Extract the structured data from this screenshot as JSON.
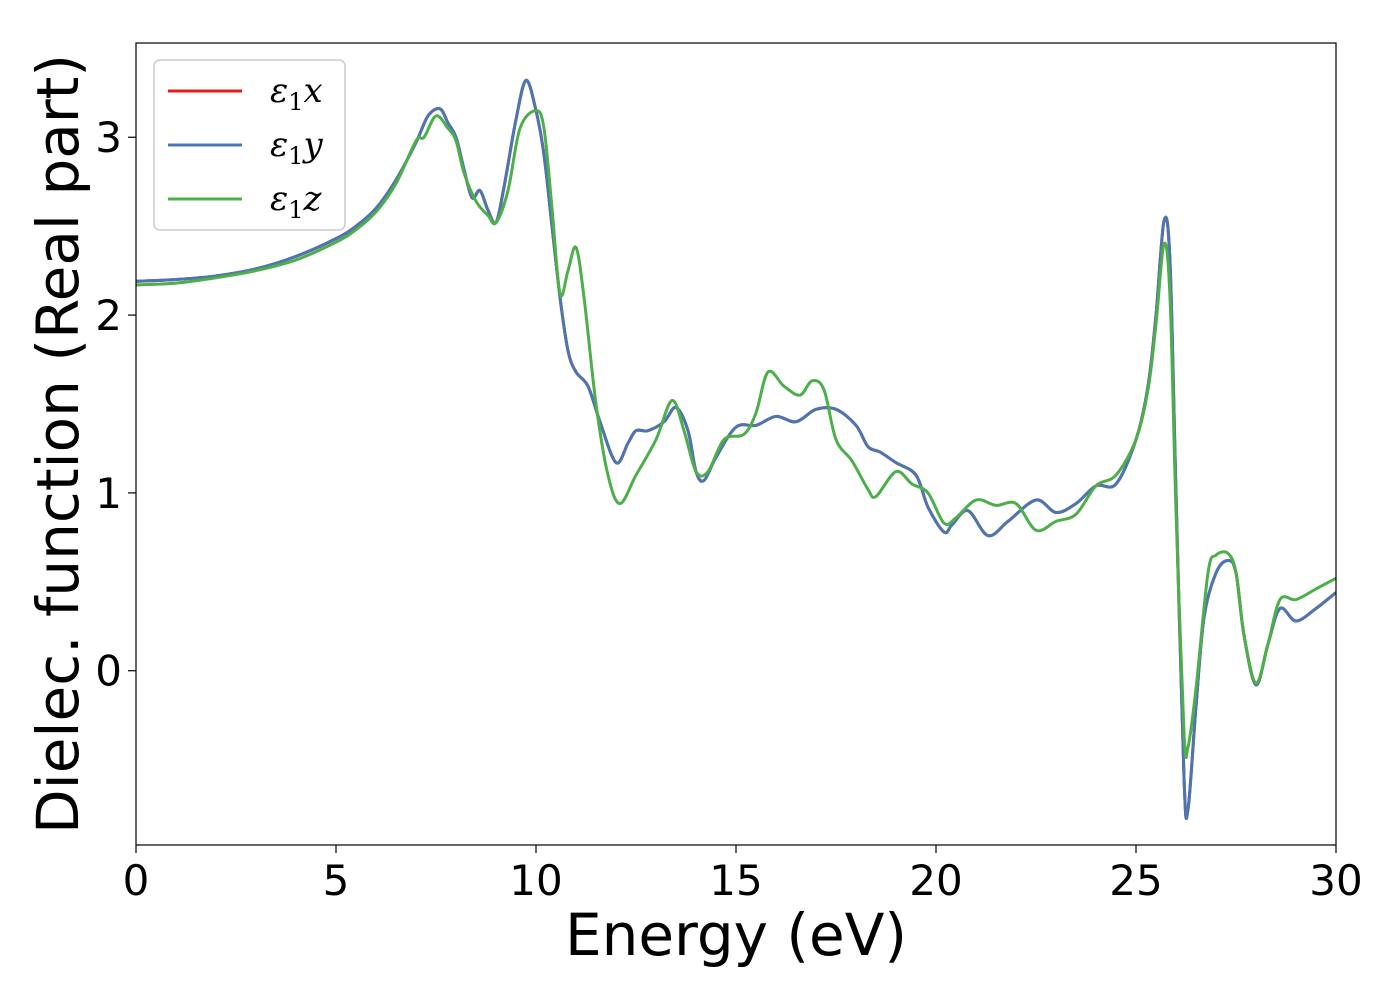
{
  "chart_data": {
    "type": "line",
    "title": "",
    "xlabel": "Energy (eV)",
    "ylabel": "Dielec. function (Real part)",
    "xlim": [
      0,
      30
    ],
    "ylim": [
      -0.98,
      3.53
    ],
    "xticks": [
      0,
      5,
      10,
      15,
      20,
      25,
      30
    ],
    "xtick_labels": [
      "0",
      "5",
      "10",
      "15",
      "20",
      "25",
      "30"
    ],
    "yticks": [
      0,
      1,
      2,
      3
    ],
    "ytick_labels": [
      "0",
      "1",
      "2",
      "3"
    ],
    "grid": false,
    "legend_position": "top-left",
    "series": [
      {
        "name": "ε1x",
        "legend_sub": "1",
        "color": "#e41a1c",
        "points": [
          [
            0,
            2.19
          ],
          [
            1,
            2.2
          ],
          [
            2,
            2.22
          ],
          [
            3,
            2.26
          ],
          [
            4,
            2.33
          ],
          [
            5,
            2.43
          ],
          [
            5.5,
            2.5
          ],
          [
            6,
            2.6
          ],
          [
            6.5,
            2.76
          ],
          [
            7,
            2.97
          ],
          [
            7.3,
            3.12
          ],
          [
            7.6,
            3.16
          ],
          [
            7.8,
            3.08
          ],
          [
            8,
            3.0
          ],
          [
            8.2,
            2.82
          ],
          [
            8.4,
            2.66
          ],
          [
            8.6,
            2.7
          ],
          [
            8.8,
            2.59
          ],
          [
            9,
            2.52
          ],
          [
            9.2,
            2.72
          ],
          [
            9.5,
            3.1
          ],
          [
            9.75,
            3.32
          ],
          [
            10,
            3.15
          ],
          [
            10.2,
            2.9
          ],
          [
            10.4,
            2.5
          ],
          [
            10.6,
            2.1
          ],
          [
            10.8,
            1.8
          ],
          [
            11,
            1.68
          ],
          [
            11.3,
            1.6
          ],
          [
            11.6,
            1.4
          ],
          [
            12,
            1.17
          ],
          [
            12.3,
            1.28
          ],
          [
            12.5,
            1.35
          ],
          [
            12.8,
            1.35
          ],
          [
            13.2,
            1.4
          ],
          [
            13.5,
            1.48
          ],
          [
            13.8,
            1.35
          ],
          [
            14,
            1.12
          ],
          [
            14.2,
            1.07
          ],
          [
            14.5,
            1.2
          ],
          [
            15,
            1.37
          ],
          [
            15.5,
            1.38
          ],
          [
            16,
            1.43
          ],
          [
            16.5,
            1.4
          ],
          [
            17,
            1.47
          ],
          [
            17.5,
            1.47
          ],
          [
            18,
            1.38
          ],
          [
            18.3,
            1.26
          ],
          [
            18.6,
            1.23
          ],
          [
            19,
            1.17
          ],
          [
            19.5,
            1.1
          ],
          [
            19.8,
            0.92
          ],
          [
            20.2,
            0.78
          ],
          [
            20.4,
            0.82
          ],
          [
            20.8,
            0.9
          ],
          [
            21.3,
            0.76
          ],
          [
            21.8,
            0.84
          ],
          [
            22.5,
            0.96
          ],
          [
            23,
            0.89
          ],
          [
            23.5,
            0.94
          ],
          [
            24,
            1.04
          ],
          [
            24.5,
            1.05
          ],
          [
            25,
            1.3
          ],
          [
            25.3,
            1.6
          ],
          [
            25.5,
            2.0
          ],
          [
            25.7,
            2.53
          ],
          [
            25.85,
            2.3
          ],
          [
            26,
            1.0
          ],
          [
            26.2,
            -0.6
          ],
          [
            26.3,
            -0.78
          ],
          [
            26.5,
            -0.2
          ],
          [
            26.7,
            0.3
          ],
          [
            27,
            0.55
          ],
          [
            27.3,
            0.62
          ],
          [
            27.5,
            0.55
          ],
          [
            27.7,
            0.2
          ],
          [
            28,
            -0.08
          ],
          [
            28.3,
            0.15
          ],
          [
            28.6,
            0.35
          ],
          [
            29,
            0.28
          ],
          [
            29.5,
            0.35
          ],
          [
            30,
            0.44
          ]
        ]
      },
      {
        "name": "ε1y",
        "legend_sub": "1",
        "color": "#4a77b4",
        "points": [
          [
            0,
            2.19
          ],
          [
            1,
            2.2
          ],
          [
            2,
            2.22
          ],
          [
            3,
            2.26
          ],
          [
            4,
            2.33
          ],
          [
            5,
            2.43
          ],
          [
            5.5,
            2.5
          ],
          [
            6,
            2.6
          ],
          [
            6.5,
            2.76
          ],
          [
            7,
            2.97
          ],
          [
            7.3,
            3.12
          ],
          [
            7.6,
            3.16
          ],
          [
            7.8,
            3.08
          ],
          [
            8,
            3.0
          ],
          [
            8.2,
            2.82
          ],
          [
            8.4,
            2.66
          ],
          [
            8.6,
            2.7
          ],
          [
            8.8,
            2.59
          ],
          [
            9,
            2.52
          ],
          [
            9.2,
            2.72
          ],
          [
            9.5,
            3.1
          ],
          [
            9.75,
            3.32
          ],
          [
            10,
            3.15
          ],
          [
            10.2,
            2.9
          ],
          [
            10.4,
            2.5
          ],
          [
            10.6,
            2.1
          ],
          [
            10.8,
            1.8
          ],
          [
            11,
            1.68
          ],
          [
            11.3,
            1.6
          ],
          [
            11.6,
            1.4
          ],
          [
            12,
            1.17
          ],
          [
            12.3,
            1.28
          ],
          [
            12.5,
            1.35
          ],
          [
            12.8,
            1.35
          ],
          [
            13.2,
            1.4
          ],
          [
            13.5,
            1.48
          ],
          [
            13.8,
            1.35
          ],
          [
            14,
            1.12
          ],
          [
            14.2,
            1.07
          ],
          [
            14.5,
            1.2
          ],
          [
            15,
            1.37
          ],
          [
            15.5,
            1.38
          ],
          [
            16,
            1.43
          ],
          [
            16.5,
            1.4
          ],
          [
            17,
            1.47
          ],
          [
            17.5,
            1.47
          ],
          [
            18,
            1.38
          ],
          [
            18.3,
            1.26
          ],
          [
            18.6,
            1.23
          ],
          [
            19,
            1.17
          ],
          [
            19.5,
            1.1
          ],
          [
            19.8,
            0.92
          ],
          [
            20.2,
            0.78
          ],
          [
            20.4,
            0.82
          ],
          [
            20.8,
            0.9
          ],
          [
            21.3,
            0.76
          ],
          [
            21.8,
            0.84
          ],
          [
            22.5,
            0.96
          ],
          [
            23,
            0.89
          ],
          [
            23.5,
            0.94
          ],
          [
            24,
            1.04
          ],
          [
            24.5,
            1.05
          ],
          [
            25,
            1.3
          ],
          [
            25.3,
            1.6
          ],
          [
            25.5,
            2.0
          ],
          [
            25.7,
            2.53
          ],
          [
            25.85,
            2.3
          ],
          [
            26,
            1.0
          ],
          [
            26.2,
            -0.6
          ],
          [
            26.3,
            -0.78
          ],
          [
            26.5,
            -0.2
          ],
          [
            26.7,
            0.3
          ],
          [
            27,
            0.55
          ],
          [
            27.3,
            0.62
          ],
          [
            27.5,
            0.55
          ],
          [
            27.7,
            0.2
          ],
          [
            28,
            -0.08
          ],
          [
            28.3,
            0.15
          ],
          [
            28.6,
            0.35
          ],
          [
            29,
            0.28
          ],
          [
            29.5,
            0.35
          ],
          [
            30,
            0.44
          ]
        ]
      },
      {
        "name": "ε1z",
        "legend_sub": "1",
        "color": "#4daf4a",
        "points": [
          [
            0,
            2.17
          ],
          [
            1,
            2.18
          ],
          [
            2,
            2.21
          ],
          [
            3,
            2.25
          ],
          [
            4,
            2.31
          ],
          [
            5,
            2.41
          ],
          [
            5.5,
            2.48
          ],
          [
            6,
            2.58
          ],
          [
            6.5,
            2.74
          ],
          [
            7,
            2.98
          ],
          [
            7.2,
            3.0
          ],
          [
            7.5,
            3.12
          ],
          [
            7.8,
            3.05
          ],
          [
            8,
            2.98
          ],
          [
            8.2,
            2.8
          ],
          [
            8.5,
            2.64
          ],
          [
            8.8,
            2.56
          ],
          [
            9,
            2.52
          ],
          [
            9.3,
            2.7
          ],
          [
            9.6,
            3.05
          ],
          [
            10,
            3.15
          ],
          [
            10.2,
            3.05
          ],
          [
            10.4,
            2.6
          ],
          [
            10.6,
            2.12
          ],
          [
            10.8,
            2.25
          ],
          [
            11,
            2.38
          ],
          [
            11.2,
            2.1
          ],
          [
            11.5,
            1.5
          ],
          [
            11.8,
            1.1
          ],
          [
            12.1,
            0.94
          ],
          [
            12.5,
            1.1
          ],
          [
            13,
            1.3
          ],
          [
            13.4,
            1.52
          ],
          [
            13.7,
            1.35
          ],
          [
            14,
            1.12
          ],
          [
            14.3,
            1.12
          ],
          [
            14.7,
            1.3
          ],
          [
            15.2,
            1.33
          ],
          [
            15.5,
            1.45
          ],
          [
            15.8,
            1.68
          ],
          [
            16.2,
            1.6
          ],
          [
            16.6,
            1.55
          ],
          [
            16.9,
            1.63
          ],
          [
            17.2,
            1.58
          ],
          [
            17.5,
            1.3
          ],
          [
            17.9,
            1.18
          ],
          [
            18.3,
            1.02
          ],
          [
            18.5,
            0.98
          ],
          [
            19,
            1.12
          ],
          [
            19.4,
            1.05
          ],
          [
            19.8,
            1.0
          ],
          [
            20.2,
            0.83
          ],
          [
            20.5,
            0.86
          ],
          [
            21,
            0.96
          ],
          [
            21.5,
            0.93
          ],
          [
            22,
            0.94
          ],
          [
            22.5,
            0.79
          ],
          [
            23,
            0.84
          ],
          [
            23.5,
            0.88
          ],
          [
            24,
            1.04
          ],
          [
            24.5,
            1.1
          ],
          [
            25,
            1.3
          ],
          [
            25.3,
            1.58
          ],
          [
            25.5,
            1.95
          ],
          [
            25.7,
            2.4
          ],
          [
            25.85,
            2.1
          ],
          [
            26,
            0.9
          ],
          [
            26.2,
            -0.35
          ],
          [
            26.3,
            -0.43
          ],
          [
            26.5,
            -0.1
          ],
          [
            26.8,
            0.55
          ],
          [
            27,
            0.65
          ],
          [
            27.3,
            0.66
          ],
          [
            27.5,
            0.55
          ],
          [
            27.7,
            0.2
          ],
          [
            28,
            -0.07
          ],
          [
            28.3,
            0.15
          ],
          [
            28.6,
            0.4
          ],
          [
            29,
            0.4
          ],
          [
            29.5,
            0.46
          ],
          [
            30,
            0.52
          ]
        ]
      }
    ]
  }
}
